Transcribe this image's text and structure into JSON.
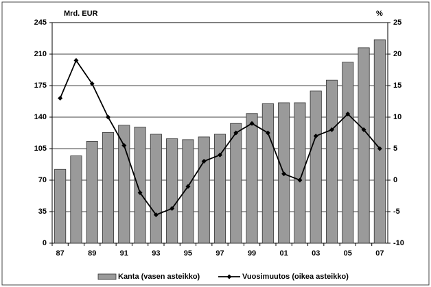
{
  "chart_data": {
    "type": "bar",
    "ylabel": "Mrd. EUR",
    "y2label": "%",
    "categories": [
      "87",
      null,
      "89",
      null,
      "91",
      null,
      "93",
      null,
      "95",
      null,
      "97",
      null,
      "99",
      null,
      "01",
      null,
      "03",
      null,
      "05",
      null,
      "07"
    ],
    "series": [
      {
        "name": "Kanta (vasen asteikko)",
        "type": "bar",
        "color": "#9a9a9a",
        "values": [
          82,
          97,
          113,
          123,
          131,
          129,
          121,
          116,
          115,
          118,
          121,
          133,
          144,
          155,
          156,
          156,
          169,
          181,
          201,
          217,
          226
        ]
      },
      {
        "name": "Vuosimuutos (oikea asteikko)",
        "type": "line",
        "axis": "y2",
        "color": "#000000",
        "values": [
          13,
          19,
          15.3,
          10,
          5.5,
          -2,
          -5.5,
          -4.5,
          -1,
          3,
          4,
          7.5,
          9,
          7.5,
          1,
          0,
          7,
          8,
          10.5,
          8,
          5
        ]
      }
    ],
    "ylim": [
      0,
      245
    ],
    "yticks": [
      0,
      35,
      70,
      105,
      140,
      175,
      210,
      245
    ],
    "y2lim": [
      -10,
      25
    ],
    "y2ticks": [
      -10,
      -5,
      0,
      5,
      10,
      15,
      20,
      25
    ],
    "grid": true
  }
}
